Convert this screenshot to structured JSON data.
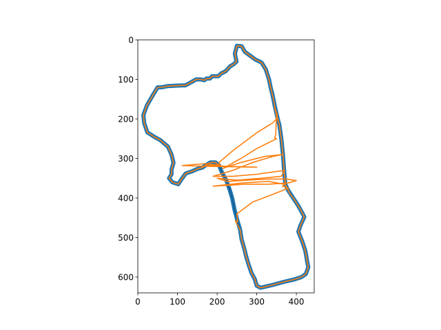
{
  "chart_data": {
    "type": "line",
    "title": "",
    "xlabel": "",
    "ylabel": "",
    "xlim": [
      0,
      445
    ],
    "ylim": [
      640,
      0
    ],
    "y_inverted": true,
    "xticks": [
      "0",
      "100",
      "200",
      "300",
      "400"
    ],
    "yticks": [
      "0",
      "100",
      "200",
      "300",
      "400",
      "500",
      "600"
    ],
    "grid": false,
    "legend": "none",
    "colors": {
      "series_0": "#1f77b4",
      "series_1": "#ff7f0e",
      "track_edge": "#000000"
    },
    "series": [
      {
        "points": [
          [
            250,
            15
          ],
          [
            262,
            16
          ],
          [
            270,
            30
          ],
          [
            297,
            50
          ],
          [
            312,
            57
          ],
          [
            323,
            75
          ],
          [
            331,
            100
          ],
          [
            335,
            120
          ],
          [
            340,
            140
          ],
          [
            345,
            165
          ],
          [
            353,
            200
          ],
          [
            357,
            215
          ],
          [
            362,
            250
          ],
          [
            366,
            290
          ],
          [
            369,
            330
          ],
          [
            372,
            365
          ],
          [
            379,
            380
          ],
          [
            392,
            400
          ],
          [
            405,
            420
          ],
          [
            415,
            438
          ],
          [
            420,
            448
          ],
          [
            410,
            470
          ],
          [
            405,
            485
          ],
          [
            415,
            510
          ],
          [
            423,
            535
          ],
          [
            428,
            565
          ],
          [
            430,
            575
          ],
          [
            424,
            592
          ],
          [
            413,
            600
          ],
          [
            395,
            606
          ],
          [
            365,
            613
          ],
          [
            340,
            620
          ],
          [
            310,
            627
          ],
          [
            300,
            622
          ],
          [
            295,
            605
          ],
          [
            287,
            590
          ],
          [
            280,
            570
          ],
          [
            274,
            550
          ],
          [
            269,
            530
          ],
          [
            262,
            505
          ],
          [
            258,
            480
          ],
          [
            252,
            460
          ],
          [
            244,
            430
          ],
          [
            238,
            400
          ],
          [
            232,
            380
          ],
          [
            223,
            355
          ],
          [
            212,
            335
          ],
          [
            205,
            317
          ],
          [
            196,
            310
          ],
          [
            183,
            310
          ],
          [
            170,
            318
          ],
          [
            163,
            323
          ],
          [
            149,
            327
          ],
          [
            138,
            332
          ],
          [
            121,
            338
          ],
          [
            112,
            350
          ],
          [
            102,
            365
          ],
          [
            87,
            360
          ],
          [
            79,
            350
          ],
          [
            85,
            340
          ],
          [
            85,
            328
          ],
          [
            90,
            311
          ],
          [
            85,
            290
          ],
          [
            76,
            270
          ],
          [
            56,
            253
          ],
          [
            43,
            246
          ],
          [
            24,
            234
          ],
          [
            16,
            210
          ],
          [
            14,
            190
          ],
          [
            23,
            166
          ],
          [
            39,
            138
          ],
          [
            50,
            120
          ],
          [
            60,
            120
          ],
          [
            75,
            117
          ],
          [
            93,
            116
          ],
          [
            120,
            115
          ],
          [
            135,
            107
          ],
          [
            147,
            100
          ],
          [
            158,
            100
          ],
          [
            168,
            102
          ],
          [
            173,
            98
          ],
          [
            182,
            98
          ],
          [
            187,
            92
          ],
          [
            203,
            92
          ],
          [
            210,
            85
          ],
          [
            222,
            79
          ],
          [
            233,
            67
          ],
          [
            241,
            62
          ],
          [
            249,
            55
          ],
          [
            245,
            35
          ],
          [
            250,
            15
          ]
        ]
      },
      {
        "points": [
          [
            250,
            15
          ],
          [
            262,
            16
          ],
          [
            270,
            30
          ],
          [
            297,
            50
          ],
          [
            312,
            57
          ],
          [
            323,
            75
          ],
          [
            331,
            100
          ],
          [
            335,
            120
          ],
          [
            340,
            140
          ],
          [
            345,
            165
          ],
          [
            350,
            190
          ],
          [
            348,
            240
          ],
          [
            345,
            248
          ],
          [
            350,
            250
          ],
          [
            330,
            260
          ],
          [
            300,
            275
          ],
          [
            260,
            300
          ],
          [
            215,
            325
          ],
          [
            260,
            310
          ],
          [
            320,
            295
          ],
          [
            365,
            290
          ],
          [
            340,
            295
          ],
          [
            290,
            310
          ],
          [
            240,
            330
          ],
          [
            190,
            345
          ],
          [
            240,
            345
          ],
          [
            300,
            340
          ],
          [
            370,
            330
          ],
          [
            362,
            345
          ],
          [
            310,
            350
          ],
          [
            250,
            355
          ],
          [
            200,
            350
          ],
          [
            225,
            358
          ],
          [
            275,
            355
          ],
          [
            330,
            352
          ],
          [
            375,
            352
          ],
          [
            400,
            356
          ],
          [
            380,
            362
          ],
          [
            330,
            365
          ],
          [
            270,
            365
          ],
          [
            190,
            370
          ],
          [
            265,
            362
          ],
          [
            330,
            358
          ],
          [
            370,
            365
          ],
          [
            365,
            370
          ],
          [
            380,
            375
          ],
          [
            330,
            395
          ],
          [
            290,
            410
          ],
          [
            250,
            440
          ],
          [
            252,
            460
          ],
          [
            246,
            458
          ],
          [
            258,
            480
          ],
          [
            262,
            505
          ],
          [
            269,
            530
          ],
          [
            274,
            550
          ],
          [
            280,
            570
          ],
          [
            287,
            590
          ],
          [
            295,
            605
          ],
          [
            300,
            622
          ],
          [
            310,
            627
          ],
          [
            340,
            620
          ],
          [
            365,
            613
          ],
          [
            395,
            606
          ],
          [
            413,
            600
          ],
          [
            424,
            592
          ],
          [
            430,
            575
          ],
          [
            428,
            565
          ],
          [
            423,
            535
          ],
          [
            415,
            510
          ],
          [
            405,
            485
          ],
          [
            410,
            470
          ],
          [
            420,
            448
          ],
          [
            415,
            438
          ],
          [
            405,
            420
          ],
          [
            392,
            400
          ],
          [
            383,
            388
          ],
          [
            372,
            365
          ],
          [
            369,
            330
          ],
          [
            366,
            290
          ],
          [
            362,
            250
          ],
          [
            357,
            215
          ],
          [
            353,
            200
          ],
          [
            350,
            190
          ],
          [
            345,
            170
          ],
          [
            352,
            190
          ],
          [
            350,
            200
          ],
          [
            340,
            210
          ],
          [
            300,
            235
          ],
          [
            240,
            280
          ],
          [
            205,
            310
          ],
          [
            208,
            318
          ],
          [
            175,
            318
          ],
          [
            230,
            320
          ],
          [
            300,
            322
          ],
          [
            180,
            320
          ],
          [
            112,
            318
          ],
          [
            170,
            313
          ],
          [
            205,
            317
          ],
          [
            196,
            310
          ],
          [
            183,
            310
          ],
          [
            170,
            318
          ],
          [
            163,
            323
          ],
          [
            149,
            327
          ],
          [
            138,
            332
          ],
          [
            121,
            338
          ],
          [
            112,
            350
          ],
          [
            102,
            365
          ],
          [
            87,
            360
          ],
          [
            79,
            350
          ],
          [
            85,
            340
          ],
          [
            85,
            328
          ],
          [
            90,
            311
          ],
          [
            85,
            290
          ],
          [
            76,
            270
          ],
          [
            56,
            253
          ],
          [
            43,
            246
          ],
          [
            24,
            234
          ],
          [
            16,
            210
          ],
          [
            14,
            190
          ],
          [
            23,
            166
          ],
          [
            39,
            138
          ],
          [
            50,
            120
          ],
          [
            60,
            120
          ],
          [
            75,
            117
          ],
          [
            93,
            116
          ],
          [
            120,
            115
          ],
          [
            135,
            107
          ],
          [
            147,
            100
          ],
          [
            158,
            100
          ],
          [
            168,
            102
          ],
          [
            173,
            98
          ],
          [
            182,
            98
          ],
          [
            187,
            92
          ],
          [
            203,
            92
          ],
          [
            210,
            85
          ],
          [
            222,
            79
          ],
          [
            233,
            67
          ],
          [
            241,
            62
          ],
          [
            249,
            55
          ],
          [
            245,
            35
          ],
          [
            250,
            15
          ]
        ]
      }
    ]
  }
}
